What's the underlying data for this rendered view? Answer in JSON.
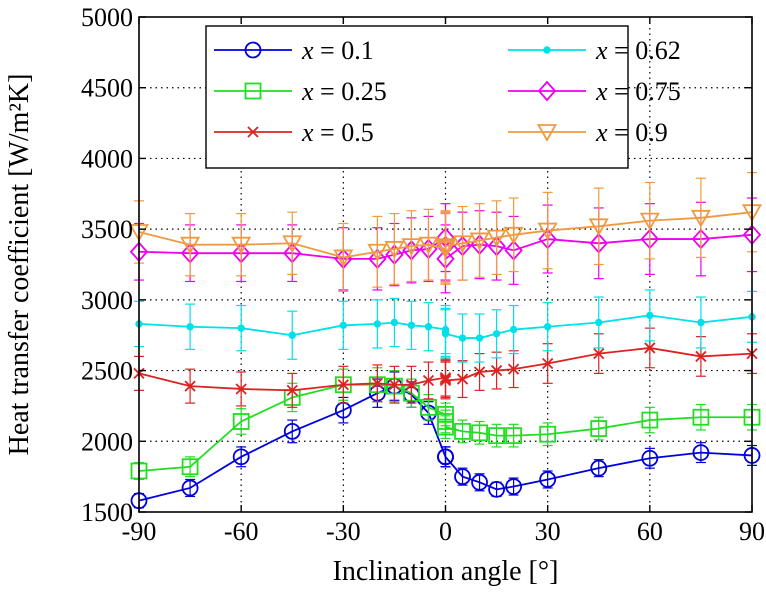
{
  "chart_data": {
    "type": "line",
    "title": "",
    "xlabel": "Inclination angle [°]",
    "ylabel": "Heat transfer coefficient [W/m²K]",
    "xlim": [
      -90,
      90
    ],
    "ylim": [
      1500,
      5000
    ],
    "xticks": [
      -90,
      -60,
      -30,
      0,
      30,
      60,
      90
    ],
    "yticks": [
      1500,
      2000,
      2500,
      3000,
      3500,
      4000,
      4500,
      5000
    ],
    "xtick_labels": [
      "-90",
      "-60",
      "-30",
      "0",
      "30",
      "60",
      "90"
    ],
    "ytick_labels": [
      "1500",
      "2000",
      "2500",
      "3000",
      "3500",
      "4000",
      "4500",
      "5000"
    ],
    "grid": true,
    "legend_position": "top",
    "x": [
      -90,
      -75,
      -60,
      -45,
      -30,
      -20,
      -15,
      -10,
      -5,
      0,
      0,
      0,
      5,
      10,
      15,
      20,
      30,
      45,
      60,
      75,
      90
    ],
    "series": [
      {
        "name": "x = 0.1",
        "color": "#0000dd",
        "marker": "circle",
        "values": [
          1580,
          1670,
          1890,
          2070,
          2220,
          2340,
          2390,
          2330,
          2200,
          1890,
          1890,
          1890,
          1750,
          1710,
          1660,
          1680,
          1730,
          1810,
          1880,
          1920,
          1900
        ],
        "error": [
          50,
          60,
          70,
          80,
          90,
          100,
          100,
          90,
          80,
          70,
          70,
          70,
          60,
          60,
          50,
          60,
          60,
          60,
          70,
          70,
          70
        ]
      },
      {
        "name": "x = 0.25",
        "color": "#22dd22",
        "marker": "square",
        "values": [
          1790,
          1820,
          2140,
          2310,
          2400,
          2400,
          2390,
          2340,
          2240,
          2190,
          2140,
          2100,
          2070,
          2060,
          2040,
          2040,
          2050,
          2090,
          2150,
          2170,
          2170
        ],
        "error": [
          60,
          70,
          90,
          100,
          110,
          120,
          110,
          100,
          90,
          80,
          80,
          80,
          80,
          80,
          80,
          80,
          80,
          80,
          90,
          90,
          90
        ]
      },
      {
        "name": "x = 0.5",
        "color": "#dd2222",
        "marker": "x",
        "values": [
          2480,
          2390,
          2370,
          2360,
          2400,
          2410,
          2400,
          2400,
          2430,
          2450,
          2440,
          2430,
          2440,
          2490,
          2500,
          2510,
          2550,
          2620,
          2660,
          2600,
          2620
        ],
        "error": [
          120,
          120,
          120,
          120,
          130,
          130,
          130,
          130,
          130,
          130,
          130,
          130,
          130,
          130,
          130,
          130,
          140,
          140,
          140,
          140,
          140
        ]
      },
      {
        "name": "x = 0.62",
        "color": "#00e0e8",
        "marker": "dot",
        "values": [
          2830,
          2810,
          2800,
          2750,
          2820,
          2830,
          2840,
          2820,
          2810,
          2790,
          2770,
          2760,
          2730,
          2730,
          2760,
          2790,
          2810,
          2840,
          2890,
          2840,
          2880
        ],
        "error": [
          160,
          160,
          160,
          170,
          170,
          170,
          170,
          170,
          170,
          170,
          170,
          170,
          170,
          170,
          170,
          170,
          170,
          180,
          180,
          180,
          180
        ]
      },
      {
        "name": "x = 0.75",
        "color": "#ee00ee",
        "marker": "diamond",
        "values": [
          3340,
          3330,
          3330,
          3330,
          3290,
          3290,
          3320,
          3350,
          3360,
          3440,
          3380,
          3290,
          3380,
          3390,
          3380,
          3350,
          3430,
          3400,
          3430,
          3430,
          3460
        ],
        "error": [
          200,
          200,
          200,
          200,
          220,
          220,
          220,
          230,
          230,
          240,
          240,
          240,
          240,
          240,
          240,
          240,
          240,
          250,
          250,
          260,
          260
        ]
      },
      {
        "name": "x = 0.9",
        "color": "#f09a40",
        "marker": "triangle-down",
        "values": [
          3480,
          3390,
          3390,
          3400,
          3300,
          3340,
          3360,
          3380,
          3390,
          3360,
          3370,
          3380,
          3400,
          3420,
          3440,
          3460,
          3490,
          3520,
          3560,
          3580,
          3620
        ],
        "error": [
          220,
          220,
          220,
          220,
          240,
          250,
          250,
          250,
          250,
          250,
          250,
          250,
          260,
          260,
          260,
          260,
          270,
          270,
          270,
          280,
          280
        ]
      }
    ]
  }
}
